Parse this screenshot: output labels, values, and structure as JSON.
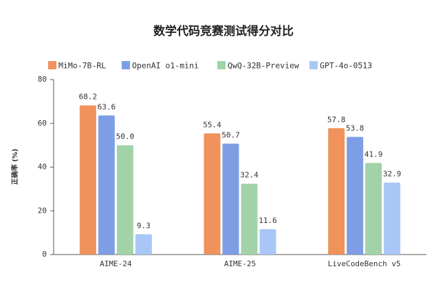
{
  "chart_data": {
    "type": "bar",
    "title": "数学代码竞赛测试得分对比",
    "y_label": "正确率 (%)",
    "categories": [
      "AIME-24",
      "AIME-25",
      "LiveCodeBench v5"
    ],
    "series": [
      {
        "name": "MiMo-7B-RL",
        "color": "#f0925b",
        "values": [
          68.2,
          55.4,
          57.8
        ],
        "value_labels": [
          "68.2",
          "55.4",
          "57.8"
        ]
      },
      {
        "name": "OpenAI o1-mini",
        "color": "#7d9ee4",
        "values": [
          63.6,
          50.7,
          53.8
        ],
        "value_labels": [
          "63.6",
          "50.7",
          "53.8"
        ]
      },
      {
        "name": "QwQ-32B-Preview",
        "color": "#a2d3a8",
        "values": [
          50.0,
          32.4,
          41.9
        ],
        "value_labels": [
          "50.0",
          "32.4",
          "41.9"
        ]
      },
      {
        "name": "GPT-4o-0513",
        "color": "#a9c7f6",
        "values": [
          9.3,
          11.6,
          32.9
        ],
        "value_labels": [
          "9.3",
          "11.6",
          "32.9"
        ]
      }
    ],
    "ylim": [
      0,
      80
    ],
    "yticks": [
      0,
      20,
      40,
      60,
      80
    ],
    "grid": false,
    "legend": "top"
  }
}
